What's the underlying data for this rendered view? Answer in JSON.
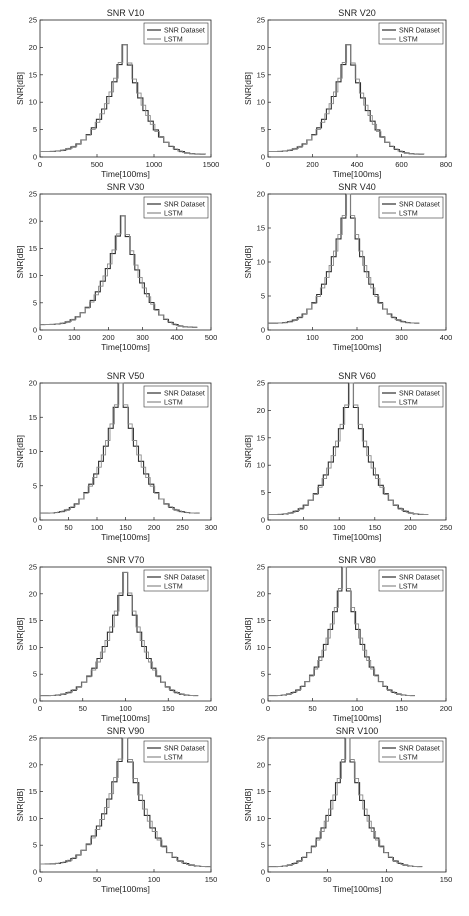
{
  "colors": {
    "dataset": "#2f2f2f",
    "lstm": "#8a8a8a",
    "axis": "#222222",
    "legend_border": "#333333"
  },
  "chart_data": [
    {
      "type": "line",
      "title": "SNR V10",
      "xlabel": "Time[100ms]",
      "ylabel": "SNR[dB]",
      "xlim": [
        0,
        1500
      ],
      "ylim": [
        0,
        25
      ],
      "xticks": [
        0,
        500,
        1000,
        1500
      ],
      "yticks": [
        0,
        5,
        10,
        15,
        20,
        25
      ],
      "peak": {
        "x": 720,
        "y": 20.5
      },
      "start": {
        "x": 0,
        "y": 1
      },
      "end": {
        "x": 1450,
        "y": 0.5
      },
      "legend": [
        "SNR Dataset",
        "LSTM"
      ],
      "legend_position": "top-right"
    },
    {
      "type": "line",
      "title": "SNR V20",
      "xlabel": "Time[100ms]",
      "ylabel": "SNR[dB]",
      "xlim": [
        0,
        800
      ],
      "ylim": [
        0,
        25
      ],
      "xticks": [
        0,
        200,
        400,
        600,
        800
      ],
      "yticks": [
        0,
        5,
        10,
        15,
        20,
        25
      ],
      "peak": {
        "x": 350,
        "y": 20.5
      },
      "start": {
        "x": 0,
        "y": 1
      },
      "end": {
        "x": 700,
        "y": 0.5
      },
      "legend": [
        "SNR Dataset",
        "LSTM"
      ],
      "legend_position": "top-right"
    },
    {
      "type": "line",
      "title": "SNR V30",
      "xlabel": "Time[100ms]",
      "ylabel": "SNR[dB]",
      "xlim": [
        0,
        500
      ],
      "ylim": [
        0,
        25
      ],
      "xticks": [
        0,
        100,
        200,
        300,
        400,
        500
      ],
      "yticks": [
        0,
        5,
        10,
        15,
        20,
        25
      ],
      "peak": {
        "x": 235,
        "y": 21
      },
      "start": {
        "x": 0,
        "y": 1
      },
      "end": {
        "x": 460,
        "y": 0.5
      },
      "legend": [
        "SNR Dataset",
        "LSTM"
      ],
      "legend_position": "top-right"
    },
    {
      "type": "line",
      "title": "SNR V40",
      "xlabel": "Time[100ms]",
      "ylabel": "SNR[dB]",
      "xlim": [
        0,
        400
      ],
      "ylim": [
        0,
        20
      ],
      "xticks": [
        0,
        100,
        200,
        300,
        400
      ],
      "yticks": [
        0,
        5,
        10,
        15,
        20
      ],
      "peak": {
        "x": 175,
        "y": 20
      },
      "start": {
        "x": 0,
        "y": 1
      },
      "end": {
        "x": 340,
        "y": 1
      },
      "legend": [
        "SNR Dataset",
        "LSTM"
      ],
      "legend_position": "top-right"
    },
    {
      "type": "line",
      "title": "SNR V50",
      "xlabel": "Time[100ms]",
      "ylabel": "SNR[dB]",
      "xlim": [
        0,
        300
      ],
      "ylim": [
        0,
        20
      ],
      "xticks": [
        0,
        50,
        100,
        150,
        200,
        250,
        300
      ],
      "yticks": [
        0,
        5,
        10,
        15,
        20
      ],
      "peak": {
        "x": 137,
        "y": 20
      },
      "start": {
        "x": 0,
        "y": 1
      },
      "end": {
        "x": 280,
        "y": 1
      },
      "legend": [
        "SNR Dataset",
        "LSTM"
      ],
      "legend_position": "top-right"
    },
    {
      "type": "line",
      "title": "SNR V60",
      "xlabel": "Time[100ms]",
      "ylabel": "SNR[dB]",
      "xlim": [
        0,
        250
      ],
      "ylim": [
        0,
        25
      ],
      "xticks": [
        0,
        50,
        100,
        150,
        200,
        250
      ],
      "yticks": [
        0,
        5,
        10,
        15,
        20,
        25
      ],
      "peak": {
        "x": 113,
        "y": 25
      },
      "start": {
        "x": 0,
        "y": 1
      },
      "end": {
        "x": 225,
        "y": 1
      },
      "legend": [
        "SNR Dataset",
        "LSTM"
      ],
      "legend_position": "top-right"
    },
    {
      "type": "line",
      "title": "SNR V70",
      "xlabel": "Time[100ms]",
      "ylabel": "SNR[dB]",
      "xlim": [
        0,
        200
      ],
      "ylim": [
        0,
        25
      ],
      "xticks": [
        0,
        50,
        100,
        150,
        200
      ],
      "yticks": [
        0,
        5,
        10,
        15,
        20,
        25
      ],
      "peak": {
        "x": 97,
        "y": 24
      },
      "start": {
        "x": 0,
        "y": 1
      },
      "end": {
        "x": 185,
        "y": 1
      },
      "legend": [
        "SNR Dataset",
        "LSTM"
      ],
      "legend_position": "top-right"
    },
    {
      "type": "line",
      "title": "SNR V80",
      "xlabel": "Time[100ms]",
      "ylabel": "SNR[dB]",
      "xlim": [
        0,
        200
      ],
      "ylim": [
        0,
        25
      ],
      "xticks": [
        0,
        50,
        100,
        150,
        200
      ],
      "yticks": [
        0,
        5,
        10,
        15,
        20,
        25
      ],
      "peak": {
        "x": 83,
        "y": 25
      },
      "start": {
        "x": 0,
        "y": 1
      },
      "end": {
        "x": 165,
        "y": 1
      },
      "legend": [
        "SNR Dataset",
        "LSTM"
      ],
      "legend_position": "top-right"
    },
    {
      "type": "line",
      "title": "SNR V90",
      "xlabel": "Time[100ms]",
      "ylabel": "SNR[dB]",
      "xlim": [
        0,
        150
      ],
      "ylim": [
        0,
        25
      ],
      "xticks": [
        0,
        50,
        100,
        150
      ],
      "yticks": [
        0,
        5,
        10,
        15,
        20,
        25
      ],
      "peak": {
        "x": 72,
        "y": 25
      },
      "start": {
        "x": 0,
        "y": 1.5
      },
      "end": {
        "x": 150,
        "y": 1
      },
      "legend": [
        "SNR Dataset",
        "LSTM"
      ],
      "legend_position": "top-right"
    },
    {
      "type": "line",
      "title": "SNR V100",
      "xlabel": "Time[100ms]",
      "ylabel": "SNR[dB]",
      "xlim": [
        0,
        150
      ],
      "ylim": [
        0,
        25
      ],
      "xticks": [
        0,
        50,
        100,
        150
      ],
      "yticks": [
        0,
        5,
        10,
        15,
        20,
        25
      ],
      "peak": {
        "x": 65,
        "y": 25
      },
      "start": {
        "x": 0,
        "y": 1
      },
      "end": {
        "x": 130,
        "y": 1
      },
      "legend": [
        "SNR Dataset",
        "LSTM"
      ],
      "legend_position": "top-right"
    }
  ]
}
